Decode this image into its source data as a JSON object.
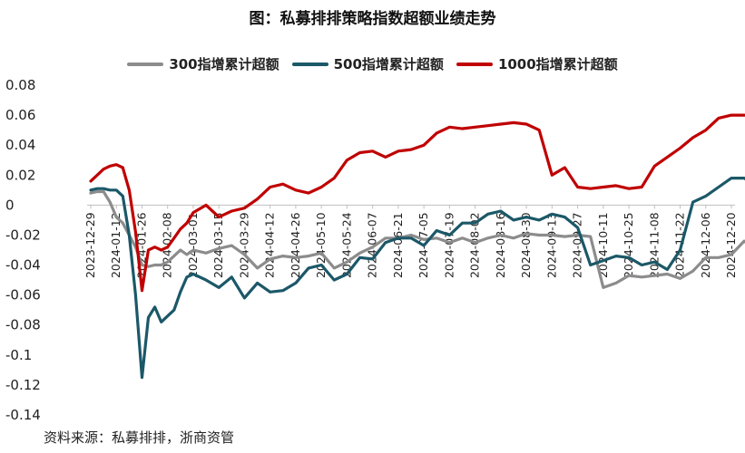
{
  "title": "图：私募排排策略指数超额业绩走势",
  "source": "资料来源：私募排排，浙商资管",
  "legend": [
    {
      "label": "300指增累计超额",
      "color": "#8c8c8c"
    },
    {
      "label": "500指增累计超额",
      "color": "#1b5868"
    },
    {
      "label": "1000指增累计超额",
      "color": "#c00000"
    }
  ],
  "chart_data": {
    "type": "line",
    "title": "图：私募排排策略指数超额业绩走势",
    "xlabel": "",
    "ylabel": "",
    "ylim": [
      -0.14,
      0.08
    ],
    "yticks": [
      "0.08",
      "0.06",
      "0.04",
      "0.02",
      "0",
      "-0.02",
      "-0.04",
      "-0.06",
      "-0.08",
      "-0.1",
      "-0.12",
      "-0.14"
    ],
    "xticks": [
      "2023-12-29",
      "2024-01-12",
      "2024-01-26",
      "2024-02-08",
      "2024-03-01",
      "2024-03-15",
      "2024-03-29",
      "2024-04-12",
      "2024-04-26",
      "2024-05-10",
      "2024-05-24",
      "2024-06-07",
      "2024-06-21",
      "2024-07-05",
      "2024-07-19",
      "2024-08-02",
      "2024-08-16",
      "2024-08-30",
      "2024-09-13",
      "2024-09-27",
      "2024-10-11",
      "2024-10-25",
      "2024-11-08",
      "2024-11-22",
      "2024-12-06",
      "2024-12-20"
    ],
    "grid": false,
    "legend_position": "top",
    "x": [
      0,
      0.25,
      0.5,
      0.75,
      1,
      1.25,
      1.5,
      1.75,
      2,
      2.25,
      2.5,
      2.75,
      3,
      3.25,
      3.5,
      3.75,
      4,
      4.5,
      5,
      5.5,
      6,
      6.5,
      7,
      7.5,
      8,
      8.5,
      9,
      9.5,
      10,
      10.5,
      11,
      11.5,
      12,
      12.5,
      13,
      13.5,
      14,
      14.5,
      15,
      15.5,
      16,
      16.5,
      17,
      17.5,
      18,
      18.5,
      19,
      19.5,
      20,
      20.5,
      21,
      21.5,
      22,
      22.5,
      23,
      23.5,
      24,
      24.5,
      25,
      25.5,
      26
    ],
    "series": [
      {
        "name": "300指增累计超额",
        "values": [
          0.008,
          0.009,
          0.009,
          0.002,
          -0.008,
          -0.012,
          -0.02,
          -0.028,
          -0.04,
          -0.041,
          -0.04,
          -0.04,
          -0.038,
          -0.034,
          -0.03,
          -0.033,
          -0.03,
          -0.032,
          -0.029,
          -0.027,
          -0.033,
          -0.042,
          -0.036,
          -0.034,
          -0.035,
          -0.034,
          -0.032,
          -0.042,
          -0.038,
          -0.032,
          -0.028,
          -0.022,
          -0.022,
          -0.02,
          -0.023,
          -0.022,
          -0.025,
          -0.022,
          -0.025,
          -0.022,
          -0.02,
          -0.022,
          -0.019,
          -0.02,
          -0.02,
          -0.021,
          -0.02,
          -0.021,
          -0.055,
          -0.052,
          -0.047,
          -0.048,
          -0.047,
          -0.046,
          -0.049,
          -0.044,
          -0.035,
          -0.035,
          -0.033,
          -0.024,
          -0.03
        ]
      },
      {
        "name": "500指增累计超额",
        "values": [
          0.01,
          0.011,
          0.011,
          0.01,
          0.01,
          0.006,
          -0.02,
          -0.06,
          -0.115,
          -0.075,
          -0.068,
          -0.078,
          -0.074,
          -0.07,
          -0.058,
          -0.048,
          -0.046,
          -0.05,
          -0.055,
          -0.048,
          -0.062,
          -0.052,
          -0.058,
          -0.057,
          -0.052,
          -0.042,
          -0.04,
          -0.05,
          -0.046,
          -0.035,
          -0.036,
          -0.025,
          -0.022,
          -0.022,
          -0.027,
          -0.017,
          -0.02,
          -0.012,
          -0.012,
          -0.006,
          -0.004,
          -0.01,
          -0.008,
          -0.01,
          -0.006,
          -0.008,
          -0.015,
          -0.04,
          -0.037,
          -0.034,
          -0.035,
          -0.04,
          -0.038,
          -0.043,
          -0.03,
          0.002,
          0.006,
          0.012,
          0.018,
          0.018,
          0.012
        ]
      },
      {
        "name": "1000指增累计超额",
        "values": [
          0.016,
          0.02,
          0.024,
          0.026,
          0.027,
          0.025,
          0.01,
          -0.018,
          -0.057,
          -0.03,
          -0.028,
          -0.03,
          -0.028,
          -0.022,
          -0.016,
          -0.012,
          -0.005,
          0.0,
          -0.008,
          -0.004,
          -0.002,
          0.004,
          0.012,
          0.014,
          0.01,
          0.008,
          0.012,
          0.018,
          0.03,
          0.035,
          0.036,
          0.032,
          0.036,
          0.037,
          0.04,
          0.048,
          0.052,
          0.051,
          0.052,
          0.053,
          0.054,
          0.055,
          0.054,
          0.05,
          0.02,
          0.025,
          0.012,
          0.011,
          0.012,
          0.013,
          0.011,
          0.012,
          0.026,
          0.032,
          0.038,
          0.045,
          0.05,
          0.058,
          0.06,
          0.06,
          0.059
        ]
      }
    ]
  }
}
